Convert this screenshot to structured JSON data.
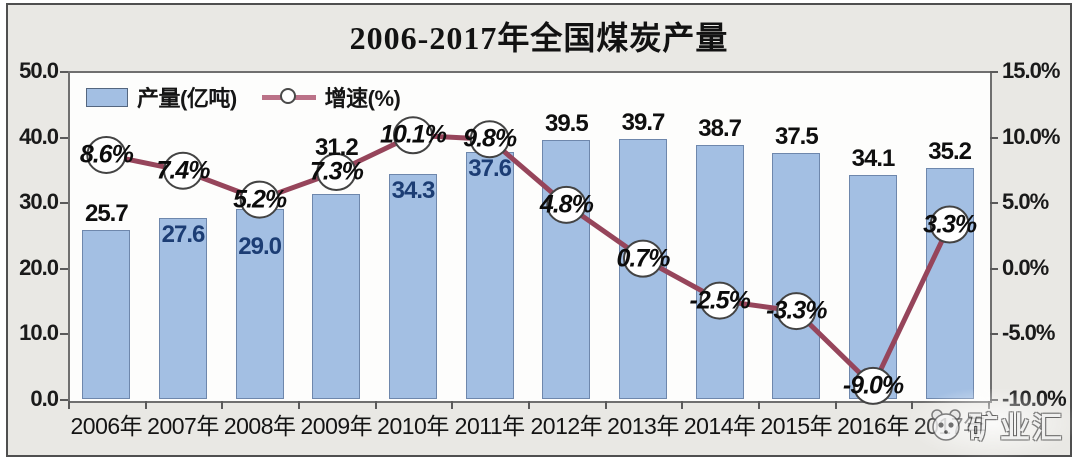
{
  "title": "2006-2017年全国煤炭产量",
  "legend": [
    {
      "label": "产量(亿吨)",
      "type": "bar"
    },
    {
      "label": "增速(%)",
      "type": "line"
    }
  ],
  "watermark": {
    "text": "矿业汇",
    "icon": "panda-logo-icon"
  },
  "colors": {
    "bar_fill": "#a3bfe3",
    "bar_border": "#6e87ac",
    "line": "#96455b",
    "marker_fill": "#ffffff",
    "marker_stroke": "#434343",
    "inside_bar_label": "#1c3d74",
    "chart_background": "#e9e8e4",
    "plot_background": "#fdfdfc"
  },
  "chart_data": {
    "type": "bar+line combo",
    "title": "2006-2017年全国煤炭产量",
    "categories": [
      "2006年",
      "2007年",
      "2008年",
      "2009年",
      "2010年",
      "2011年",
      "2012年",
      "2013年",
      "2014年",
      "2015年",
      "2016年",
      "2017年"
    ],
    "series": [
      {
        "name": "产量(亿吨)",
        "type": "bar",
        "axis": "left",
        "values": [
          25.7,
          27.6,
          29.0,
          31.2,
          34.3,
          37.6,
          39.5,
          39.7,
          38.7,
          37.5,
          34.1,
          35.2
        ],
        "labels": [
          "25.7",
          "27.6",
          "29.0",
          "31.2",
          "34.3",
          "37.6",
          "39.5",
          "39.7",
          "38.7",
          "37.5",
          "34.1",
          "35.2"
        ],
        "label_layout": [
          "above",
          "inside",
          "inside-low",
          "above-high",
          "inside",
          "inside",
          "above",
          "above",
          "above",
          "above",
          "above",
          "above"
        ]
      },
      {
        "name": "增速(%)",
        "type": "line",
        "axis": "right",
        "values": [
          8.6,
          7.4,
          5.2,
          7.3,
          10.1,
          9.8,
          4.8,
          0.7,
          -2.5,
          -3.3,
          -9.0,
          3.3
        ],
        "labels": [
          "8.6%",
          "7.4%",
          "5.2%",
          "7.3%",
          "10.1%",
          "9.8%",
          "4.8%",
          "0.7%",
          "-2.5%",
          "-3.3%",
          "-9.0%",
          "3.3%"
        ]
      }
    ],
    "left_axis": {
      "label": "",
      "min": 0,
      "max": 50,
      "step": 10,
      "ticks": [
        "50.0",
        "40.0",
        "30.0",
        "20.0",
        "10.0",
        "0.0"
      ]
    },
    "right_axis": {
      "label": "",
      "min": -10,
      "max": 15,
      "step": 5,
      "ticks": [
        "15.0%",
        "10.0%",
        "5.0%",
        "0.0%",
        "-5.0%",
        "-10.0%"
      ]
    },
    "grid": false,
    "legend_position": "top-left-inside"
  }
}
